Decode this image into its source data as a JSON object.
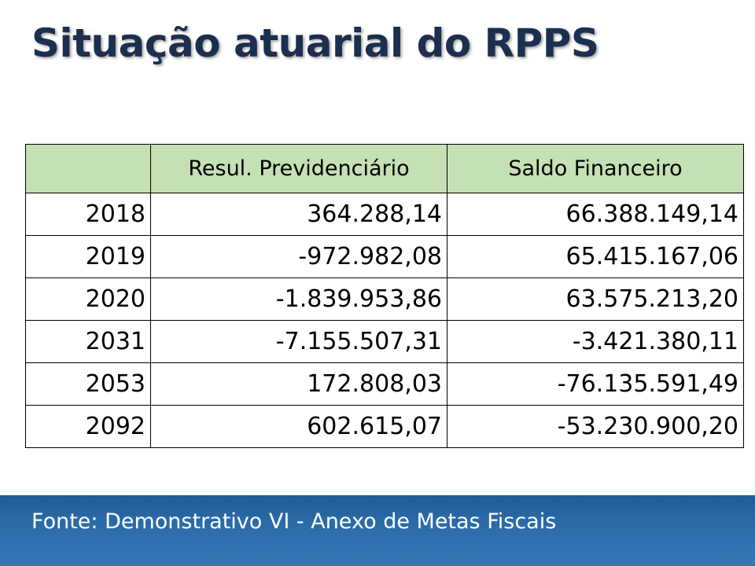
{
  "slide": {
    "title": "Situação atuarial do RPPS",
    "source": "Fonte: Demonstrativo VI - Anexo de Metas Fiscais"
  },
  "table": {
    "headers": [
      "",
      "Resul. Previdenciário",
      "Saldo Financeiro"
    ],
    "rows": [
      {
        "year": "2018",
        "resultado": "364.288,14",
        "saldo": "66.388.149,14"
      },
      {
        "year": "2019",
        "resultado": "-972.982,08",
        "saldo": "65.415.167,06"
      },
      {
        "year": "2020",
        "resultado": "-1.839.953,86",
        "saldo": "63.575.213,20"
      },
      {
        "year": "2031",
        "resultado": "-7.155.507,31",
        "saldo": "-3.421.380,11"
      },
      {
        "year": "2053",
        "resultado": "172.808,03",
        "saldo": "-76.135.591,49"
      },
      {
        "year": "2092",
        "resultado": "602.615,07",
        "saldo": "-53.230.900,20"
      }
    ]
  },
  "colors": {
    "title": "#1b2f4f",
    "header_fill": "#c5e0b4",
    "footer_bar": "#2e70ad",
    "footer_text": "#ffffff"
  }
}
